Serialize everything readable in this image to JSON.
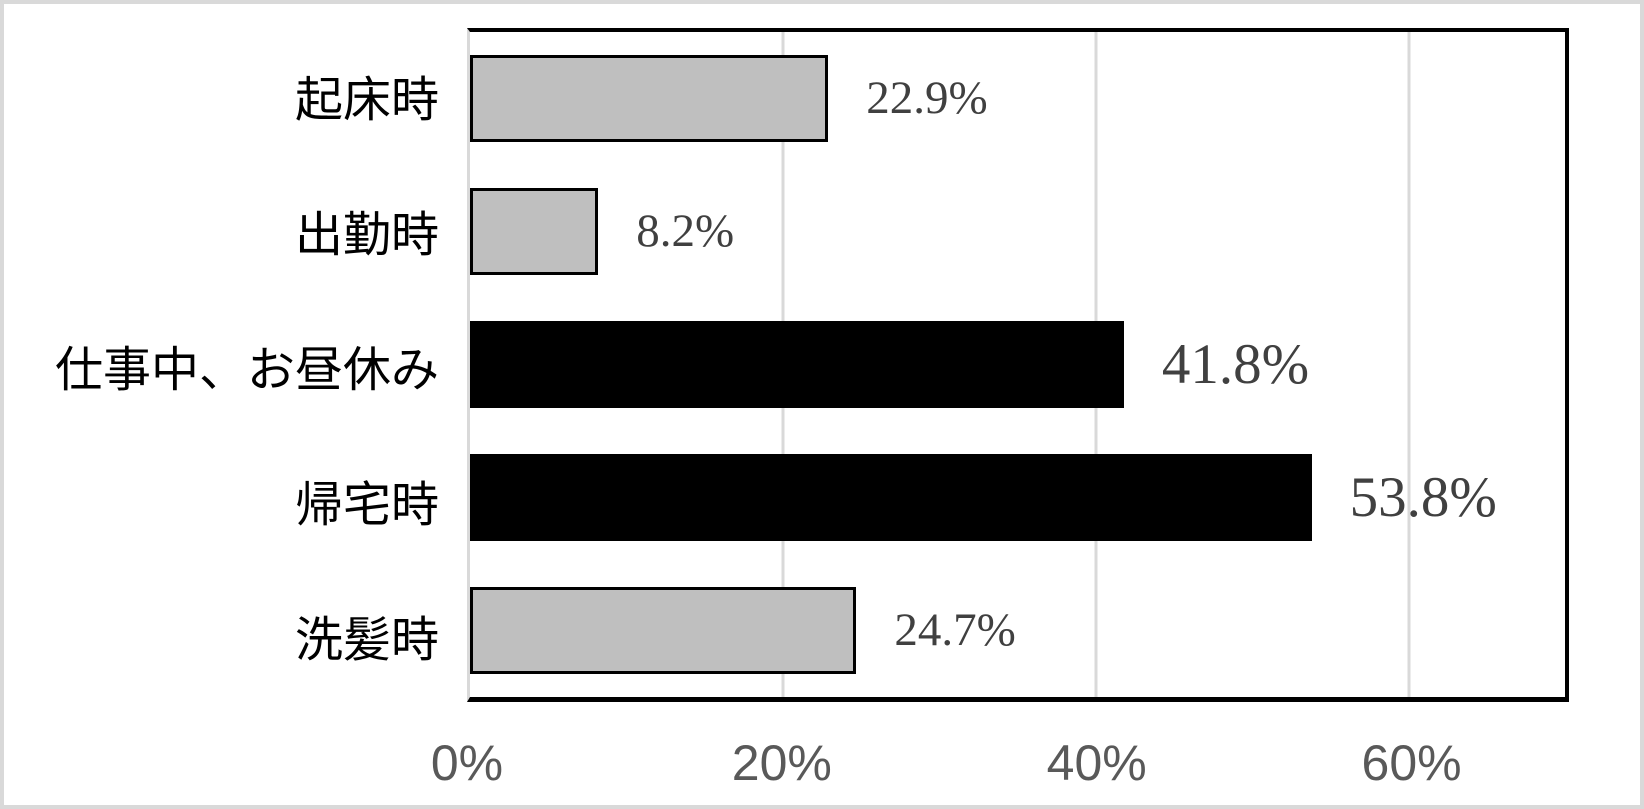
{
  "chart_data": {
    "type": "bar",
    "orientation": "horizontal",
    "categories": [
      "起床時",
      "出勤時",
      "仕事中、お昼休み",
      "帰宅時",
      "洗髪時"
    ],
    "values": [
      22.9,
      8.2,
      41.8,
      53.8,
      24.7
    ],
    "data_labels": [
      "22.9%",
      "8.2%",
      "41.8%",
      "53.8%",
      "24.7%"
    ],
    "bar_colors": [
      "#bfbfbf",
      "#bfbfbf",
      "#000000",
      "#000000",
      "#bfbfbf"
    ],
    "emphasized_labels": [
      false,
      false,
      true,
      true,
      false
    ],
    "xlim": [
      0,
      70
    ],
    "x_ticks": [
      {
        "value": 0,
        "label": "0%"
      },
      {
        "value": 20,
        "label": "20%"
      },
      {
        "value": 40,
        "label": "40%"
      },
      {
        "value": 60,
        "label": "60%"
      }
    ],
    "grid": true,
    "legend": null,
    "colors": {
      "gray_bar_fill": "#bfbfbf",
      "black_bar_fill": "#000000",
      "bar_border": "#000000",
      "gridline": "#d9d9d9",
      "axis_line": "#d9d9d9",
      "plot_border": "#000000",
      "axis_tick_label": "#595959",
      "data_label": "#404040",
      "frame_border": "#d9d9d9"
    }
  }
}
